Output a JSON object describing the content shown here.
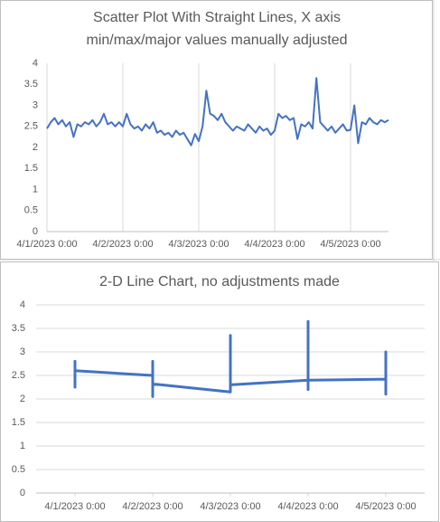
{
  "chart_data": [
    {
      "type": "scatter",
      "lines": true,
      "title": [
        "Scatter Plot With Straight Lines, X axis",
        "min/max/major values manually adjusted"
      ],
      "color": "#4472c4",
      "grid": "x",
      "xlim": [
        45017,
        45021.5
      ],
      "xticks": [
        {
          "value": 45017,
          "label": "4/1/2023 0:00"
        },
        {
          "value": 45018,
          "label": "4/2/2023 0:00"
        },
        {
          "value": 45019,
          "label": "4/3/2023 0:00"
        },
        {
          "value": 45020,
          "label": "4/4/2023 0:00"
        },
        {
          "value": 45021,
          "label": "4/5/2023 0:00"
        }
      ],
      "ylim": [
        0,
        4
      ],
      "yticks": [
        0,
        0.5,
        1,
        1.5,
        2,
        2.5,
        3,
        3.5,
        4
      ],
      "x": [
        45017,
        45017.05,
        45017.1,
        45017.15,
        45017.2,
        45017.25,
        45017.3,
        45017.35,
        45017.4,
        45017.45,
        45017.5,
        45017.55,
        45017.6,
        45017.65,
        45017.7,
        45017.75,
        45017.8,
        45017.85,
        45017.9,
        45017.95,
        45018,
        45018.05,
        45018.1,
        45018.15,
        45018.2,
        45018.25,
        45018.3,
        45018.35,
        45018.4,
        45018.45,
        45018.5,
        45018.55,
        45018.6,
        45018.65,
        45018.7,
        45018.75,
        45018.8,
        45018.85,
        45018.9,
        45018.95,
        45019,
        45019.05,
        45019.1,
        45019.15,
        45019.2,
        45019.25,
        45019.3,
        45019.35,
        45019.4,
        45019.45,
        45019.5,
        45019.55,
        45019.6,
        45019.65,
        45019.7,
        45019.75,
        45019.8,
        45019.85,
        45019.9,
        45019.95,
        45020,
        45020.05,
        45020.1,
        45020.15,
        45020.2,
        45020.25,
        45020.3,
        45020.35,
        45020.4,
        45020.45,
        45020.5,
        45020.55,
        45020.6,
        45020.65,
        45020.7,
        45020.75,
        45020.8,
        45020.85,
        45020.9,
        45020.95,
        45021,
        45021.05,
        45021.1,
        45021.15,
        45021.2,
        45021.25,
        45021.3,
        45021.35,
        45021.4,
        45021.45,
        45021.5
      ],
      "values": [
        2.45,
        2.6,
        2.7,
        2.55,
        2.65,
        2.5,
        2.6,
        2.25,
        2.55,
        2.5,
        2.6,
        2.55,
        2.65,
        2.5,
        2.6,
        2.8,
        2.55,
        2.6,
        2.5,
        2.6,
        2.5,
        2.8,
        2.55,
        2.45,
        2.5,
        2.4,
        2.55,
        2.45,
        2.6,
        2.35,
        2.4,
        2.3,
        2.35,
        2.25,
        2.4,
        2.3,
        2.35,
        2.2,
        2.05,
        2.32,
        2.15,
        2.5,
        3.35,
        2.8,
        2.75,
        2.65,
        2.8,
        2.6,
        2.5,
        2.4,
        2.5,
        2.45,
        2.4,
        2.55,
        2.45,
        2.35,
        2.5,
        2.4,
        2.45,
        2.3,
        2.4,
        2.8,
        2.7,
        2.75,
        2.65,
        2.7,
        2.2,
        2.55,
        2.5,
        2.6,
        2.45,
        3.65,
        2.6,
        2.5,
        2.4,
        2.5,
        2.35,
        2.45,
        2.55,
        2.4,
        2.42,
        3.0,
        2.1,
        2.6,
        2.55,
        2.7,
        2.6,
        2.55,
        2.65,
        2.6,
        2.65
      ]
    },
    {
      "type": "line",
      "title": [
        "2-D Line Chart, no adjustments made"
      ],
      "color": "#4472c4",
      "grid": "y",
      "xlim": [
        45016.5,
        45021.5
      ],
      "xticks": [
        {
          "value": 45017,
          "label": "4/1/2023 0:00"
        },
        {
          "value": 45018,
          "label": "4/2/2023 0:00"
        },
        {
          "value": 45019,
          "label": "4/3/2023 0:00"
        },
        {
          "value": 45020,
          "label": "4/4/2023 0:00"
        },
        {
          "value": 45021,
          "label": "4/5/2023 0:00"
        }
      ],
      "ylim": [
        0,
        4
      ],
      "yticks": [
        0,
        0.5,
        1,
        1.5,
        2,
        2.5,
        3,
        3.5,
        4
      ],
      "x": [
        45017,
        45017,
        45017,
        45017,
        45017,
        45017,
        45017,
        45017,
        45017,
        45017,
        45017,
        45017,
        45017,
        45017,
        45017,
        45017,
        45017,
        45017,
        45017,
        45017,
        45018,
        45018,
        45018,
        45018,
        45018,
        45018,
        45018,
        45018,
        45018,
        45018,
        45018,
        45018,
        45018,
        45018,
        45018,
        45018,
        45018,
        45018,
        45018,
        45018,
        45019,
        45019,
        45019,
        45019,
        45019,
        45019,
        45019,
        45019,
        45019,
        45019,
        45019,
        45019,
        45019,
        45019,
        45019,
        45019,
        45019,
        45019,
        45019,
        45019,
        45020,
        45020,
        45020,
        45020,
        45020,
        45020,
        45020,
        45020,
        45020,
        45020,
        45020,
        45020,
        45020,
        45020,
        45020,
        45020,
        45020,
        45020,
        45020,
        45020,
        45021,
        45021,
        45021,
        45021,
        45021,
        45021,
        45021,
        45021,
        45021,
        45021,
        45021
      ],
      "values": [
        2.45,
        2.6,
        2.7,
        2.55,
        2.65,
        2.5,
        2.6,
        2.25,
        2.55,
        2.5,
        2.6,
        2.55,
        2.65,
        2.5,
        2.6,
        2.8,
        2.55,
        2.6,
        2.5,
        2.6,
        2.5,
        2.8,
        2.55,
        2.45,
        2.5,
        2.4,
        2.55,
        2.45,
        2.6,
        2.35,
        2.4,
        2.3,
        2.35,
        2.25,
        2.4,
        2.3,
        2.35,
        2.2,
        2.05,
        2.32,
        2.15,
        2.5,
        3.35,
        2.8,
        2.75,
        2.65,
        2.8,
        2.6,
        2.5,
        2.4,
        2.5,
        2.45,
        2.4,
        2.55,
        2.45,
        2.35,
        2.5,
        2.4,
        2.45,
        2.3,
        2.4,
        2.8,
        2.7,
        2.75,
        2.65,
        2.7,
        2.2,
        2.55,
        2.5,
        2.6,
        2.45,
        3.65,
        2.6,
        2.5,
        2.4,
        2.5,
        2.35,
        2.45,
        2.55,
        2.4,
        2.42,
        3.0,
        2.1,
        2.6,
        2.55,
        2.7,
        2.6,
        2.55,
        2.65,
        2.6,
        2.65
      ]
    }
  ]
}
